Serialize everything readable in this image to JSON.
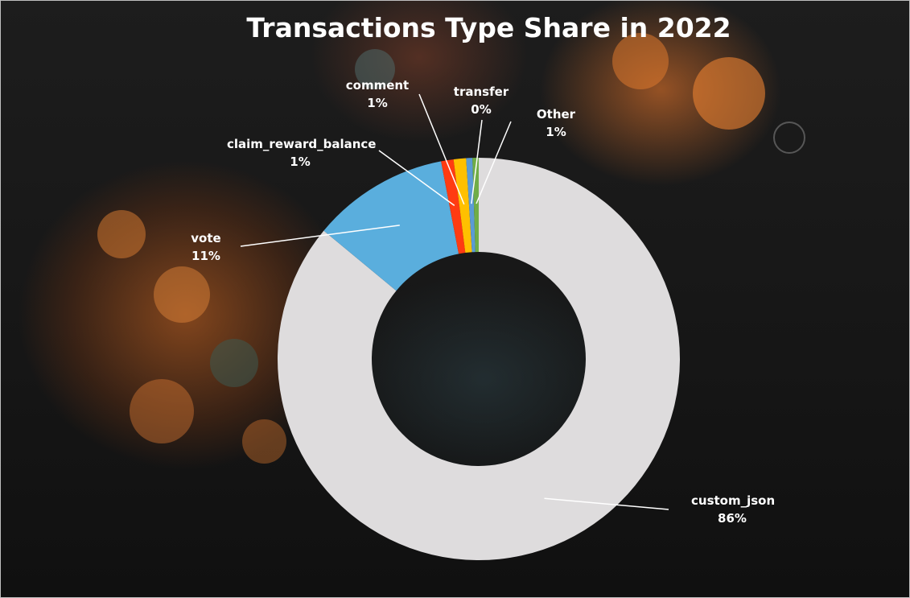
{
  "chart_data": {
    "type": "pie",
    "variant": "doughnut",
    "title": "Transactions Type Share in 2022",
    "slices": [
      {
        "name": "custom_json",
        "value": 86,
        "label": "86%",
        "color": "#dedcdd"
      },
      {
        "name": "vote",
        "value": 11,
        "label": "11%",
        "color": "#5aaedd"
      },
      {
        "name": "claim_reward_balance",
        "value": 1,
        "label": "1%",
        "color": "#ff3b12"
      },
      {
        "name": "comment",
        "value": 1,
        "label": "1%",
        "color": "#ffc000"
      },
      {
        "name": "transfer",
        "value": 0.5,
        "label": "0%",
        "color": "#5b9bd5"
      },
      {
        "name": "Other",
        "value": 0.5,
        "label": "1%",
        "color": "#70ad47"
      }
    ],
    "legend": "none",
    "data_labels": "outside-with-leader-lines"
  }
}
